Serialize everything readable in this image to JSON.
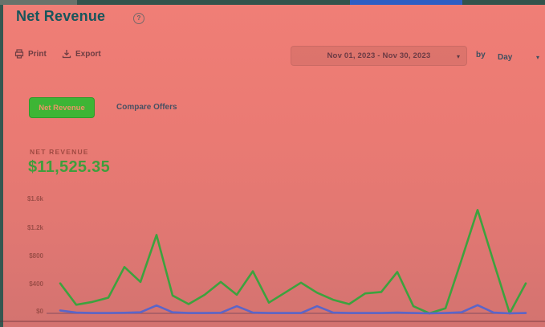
{
  "colors": {
    "background_tint": "#ea7a73",
    "top_strip": "#33534c",
    "top_strip_blue_segment": "#2e5ec4",
    "accent_green": "#3db535",
    "stat_green": "#3f9e3c",
    "line_green": "#3da23e",
    "line_blue": "#5b65c8",
    "title_teal": "#17565c"
  },
  "icons": {
    "caret_down": "▾",
    "help": "?"
  },
  "header": {
    "title": "Net Revenue"
  },
  "toolbar": {
    "print_label": "Print",
    "export_label": "Export",
    "date_range_value": "Nov 01, 2023 - Nov 30, 2023",
    "by_label": "by",
    "granularity_value": "Day"
  },
  "tabs": {
    "net_revenue_label": "Net Revenue",
    "compare_offers_label": "Compare Offers"
  },
  "stat": {
    "label": "NET REVENUE",
    "value": "$11,525.35"
  },
  "chart_data": {
    "type": "line",
    "title": "",
    "xlabel": "",
    "ylabel": "",
    "x": [
      1,
      2,
      3,
      4,
      5,
      6,
      7,
      8,
      9,
      10,
      11,
      12,
      13,
      14,
      15,
      16,
      17,
      18,
      19,
      20,
      21,
      22,
      23,
      24,
      25,
      26,
      27,
      28,
      29,
      30
    ],
    "x_unit": "day of Nov 2023 (axis labels not visible)",
    "ylim": [
      0,
      1600
    ],
    "yticks": [
      "$1.6k",
      "$1.2k",
      "$800",
      "$400",
      "$0"
    ],
    "grid": false,
    "legend": "none",
    "series": [
      {
        "name": "net-revenue-line",
        "color": "#3da23e",
        "values": [
          420,
          120,
          160,
          220,
          650,
          440,
          1100,
          250,
          130,
          260,
          440,
          260,
          590,
          150,
          290,
          430,
          290,
          190,
          130,
          280,
          300,
          580,
          100,
          0,
          70,
          750,
          1450,
          720,
          0,
          420
        ]
      },
      {
        "name": "secondary-line",
        "color": "#5b65c8",
        "values": [
          40,
          10,
          5,
          5,
          8,
          15,
          110,
          15,
          5,
          5,
          8,
          100,
          10,
          5,
          5,
          5,
          100,
          10,
          5,
          5,
          5,
          10,
          5,
          0,
          5,
          15,
          115,
          10,
          0,
          5
        ]
      }
    ]
  }
}
